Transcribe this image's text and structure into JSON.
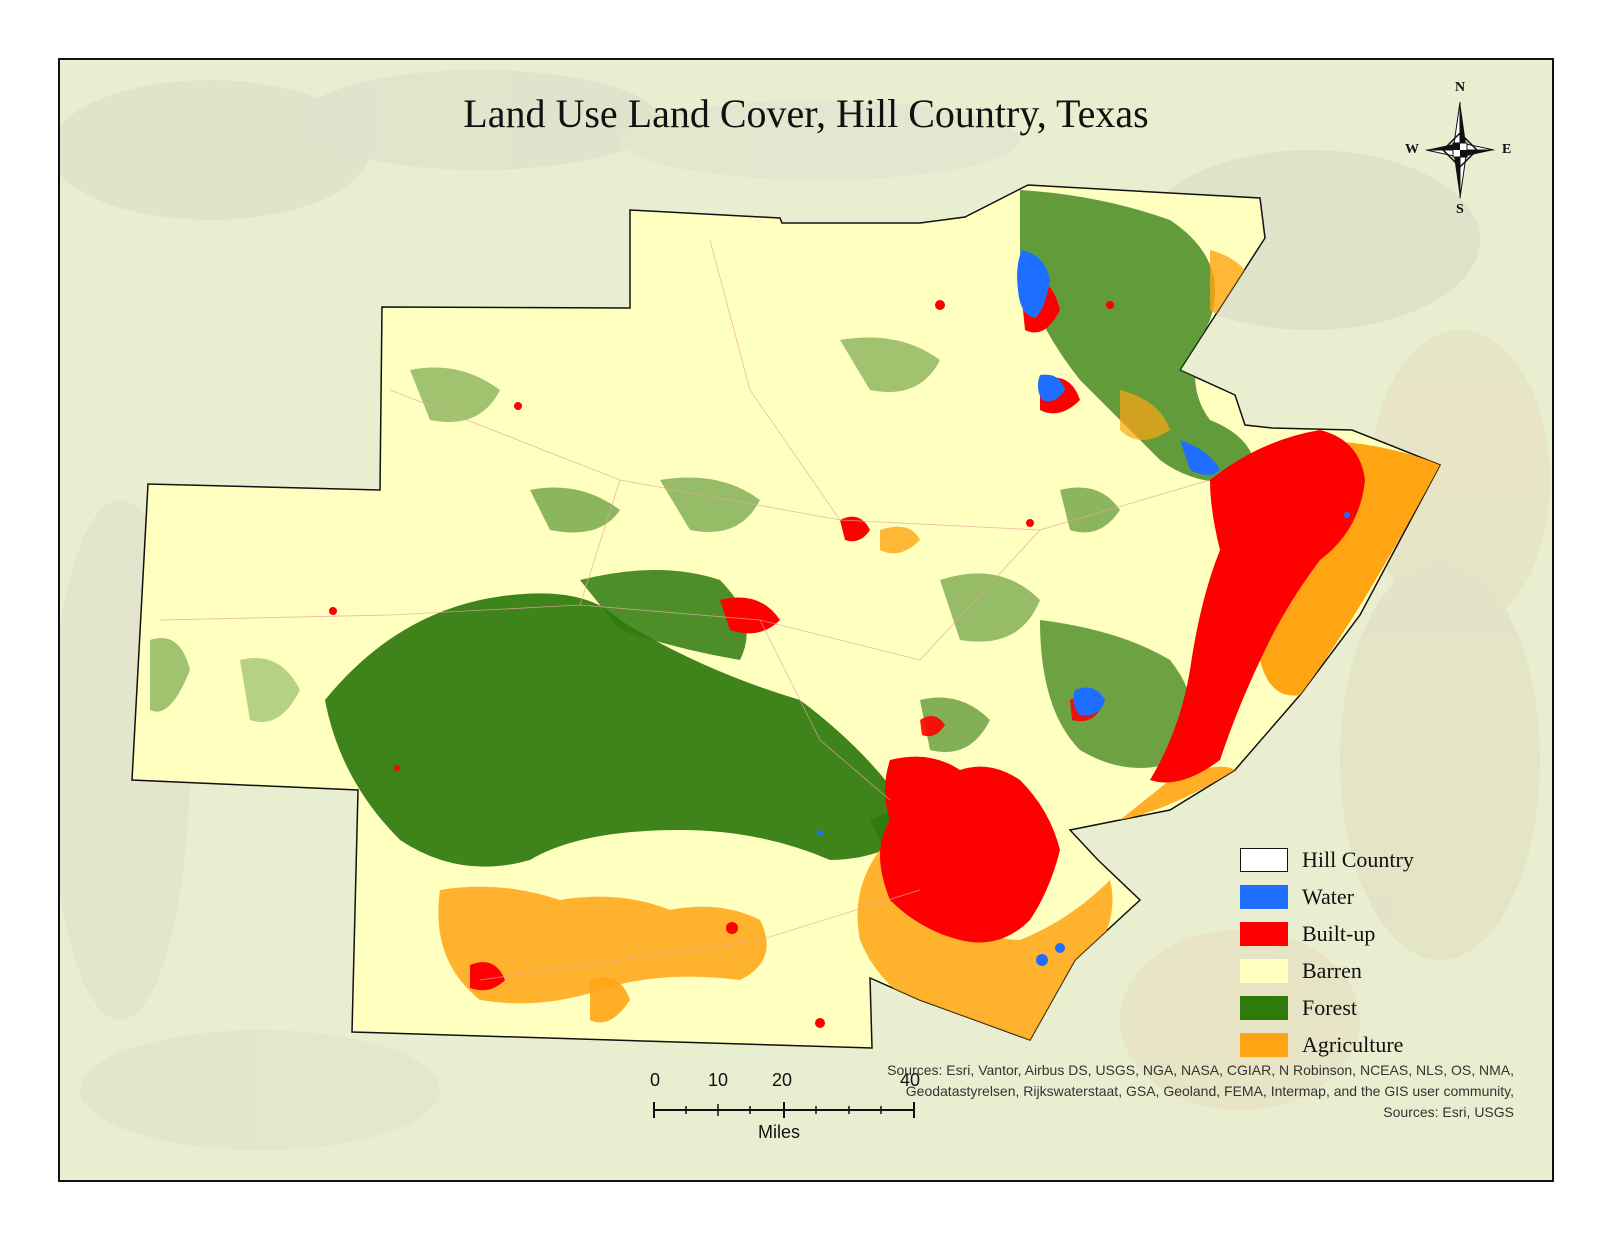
{
  "map": {
    "title": "Land Use Land Cover, Hill Country, Texas",
    "north_arrow": {
      "n": "N",
      "s": "S",
      "e": "E",
      "w": "W"
    },
    "legend": [
      {
        "label": "Hill Country",
        "color": "#ffffff",
        "outline": "#111111",
        "icon": "boundary-outline"
      },
      {
        "label": "Water",
        "color": "#1e6fff",
        "icon": "water-swatch"
      },
      {
        "label": "Built-up",
        "color": "#ff0000",
        "icon": "builtup-swatch"
      },
      {
        "label": "Barren",
        "color": "#ffffc0",
        "icon": "barren-swatch"
      },
      {
        "label": "Forest",
        "color": "#2e7a0d",
        "icon": "forest-swatch"
      },
      {
        "label": "Agriculture",
        "color": "#ffa514",
        "icon": "agriculture-swatch"
      }
    ],
    "scale_bar": {
      "ticks": [
        "0",
        "10",
        "20",
        "40"
      ],
      "units": "Miles"
    },
    "credits": [
      "Sources: Esri, Vantor, Airbus DS, USGS, NGA, NASA, CGIAR, N Robinson, NCEAS, NLS, OS, NMA,",
      "Geodatastyrelsen, Rijkswaterstaat, GSA, Geoland, FEMA, Intermap, and the GIS user community,",
      "Sources: Esri, USGS"
    ],
    "colors": {
      "frame_background": "#eaeed0",
      "barren": "#ffffc0",
      "forest": "#2e7a0d",
      "builtup": "#ff0000",
      "agriculture": "#ffa514",
      "water": "#1e6fff"
    }
  }
}
